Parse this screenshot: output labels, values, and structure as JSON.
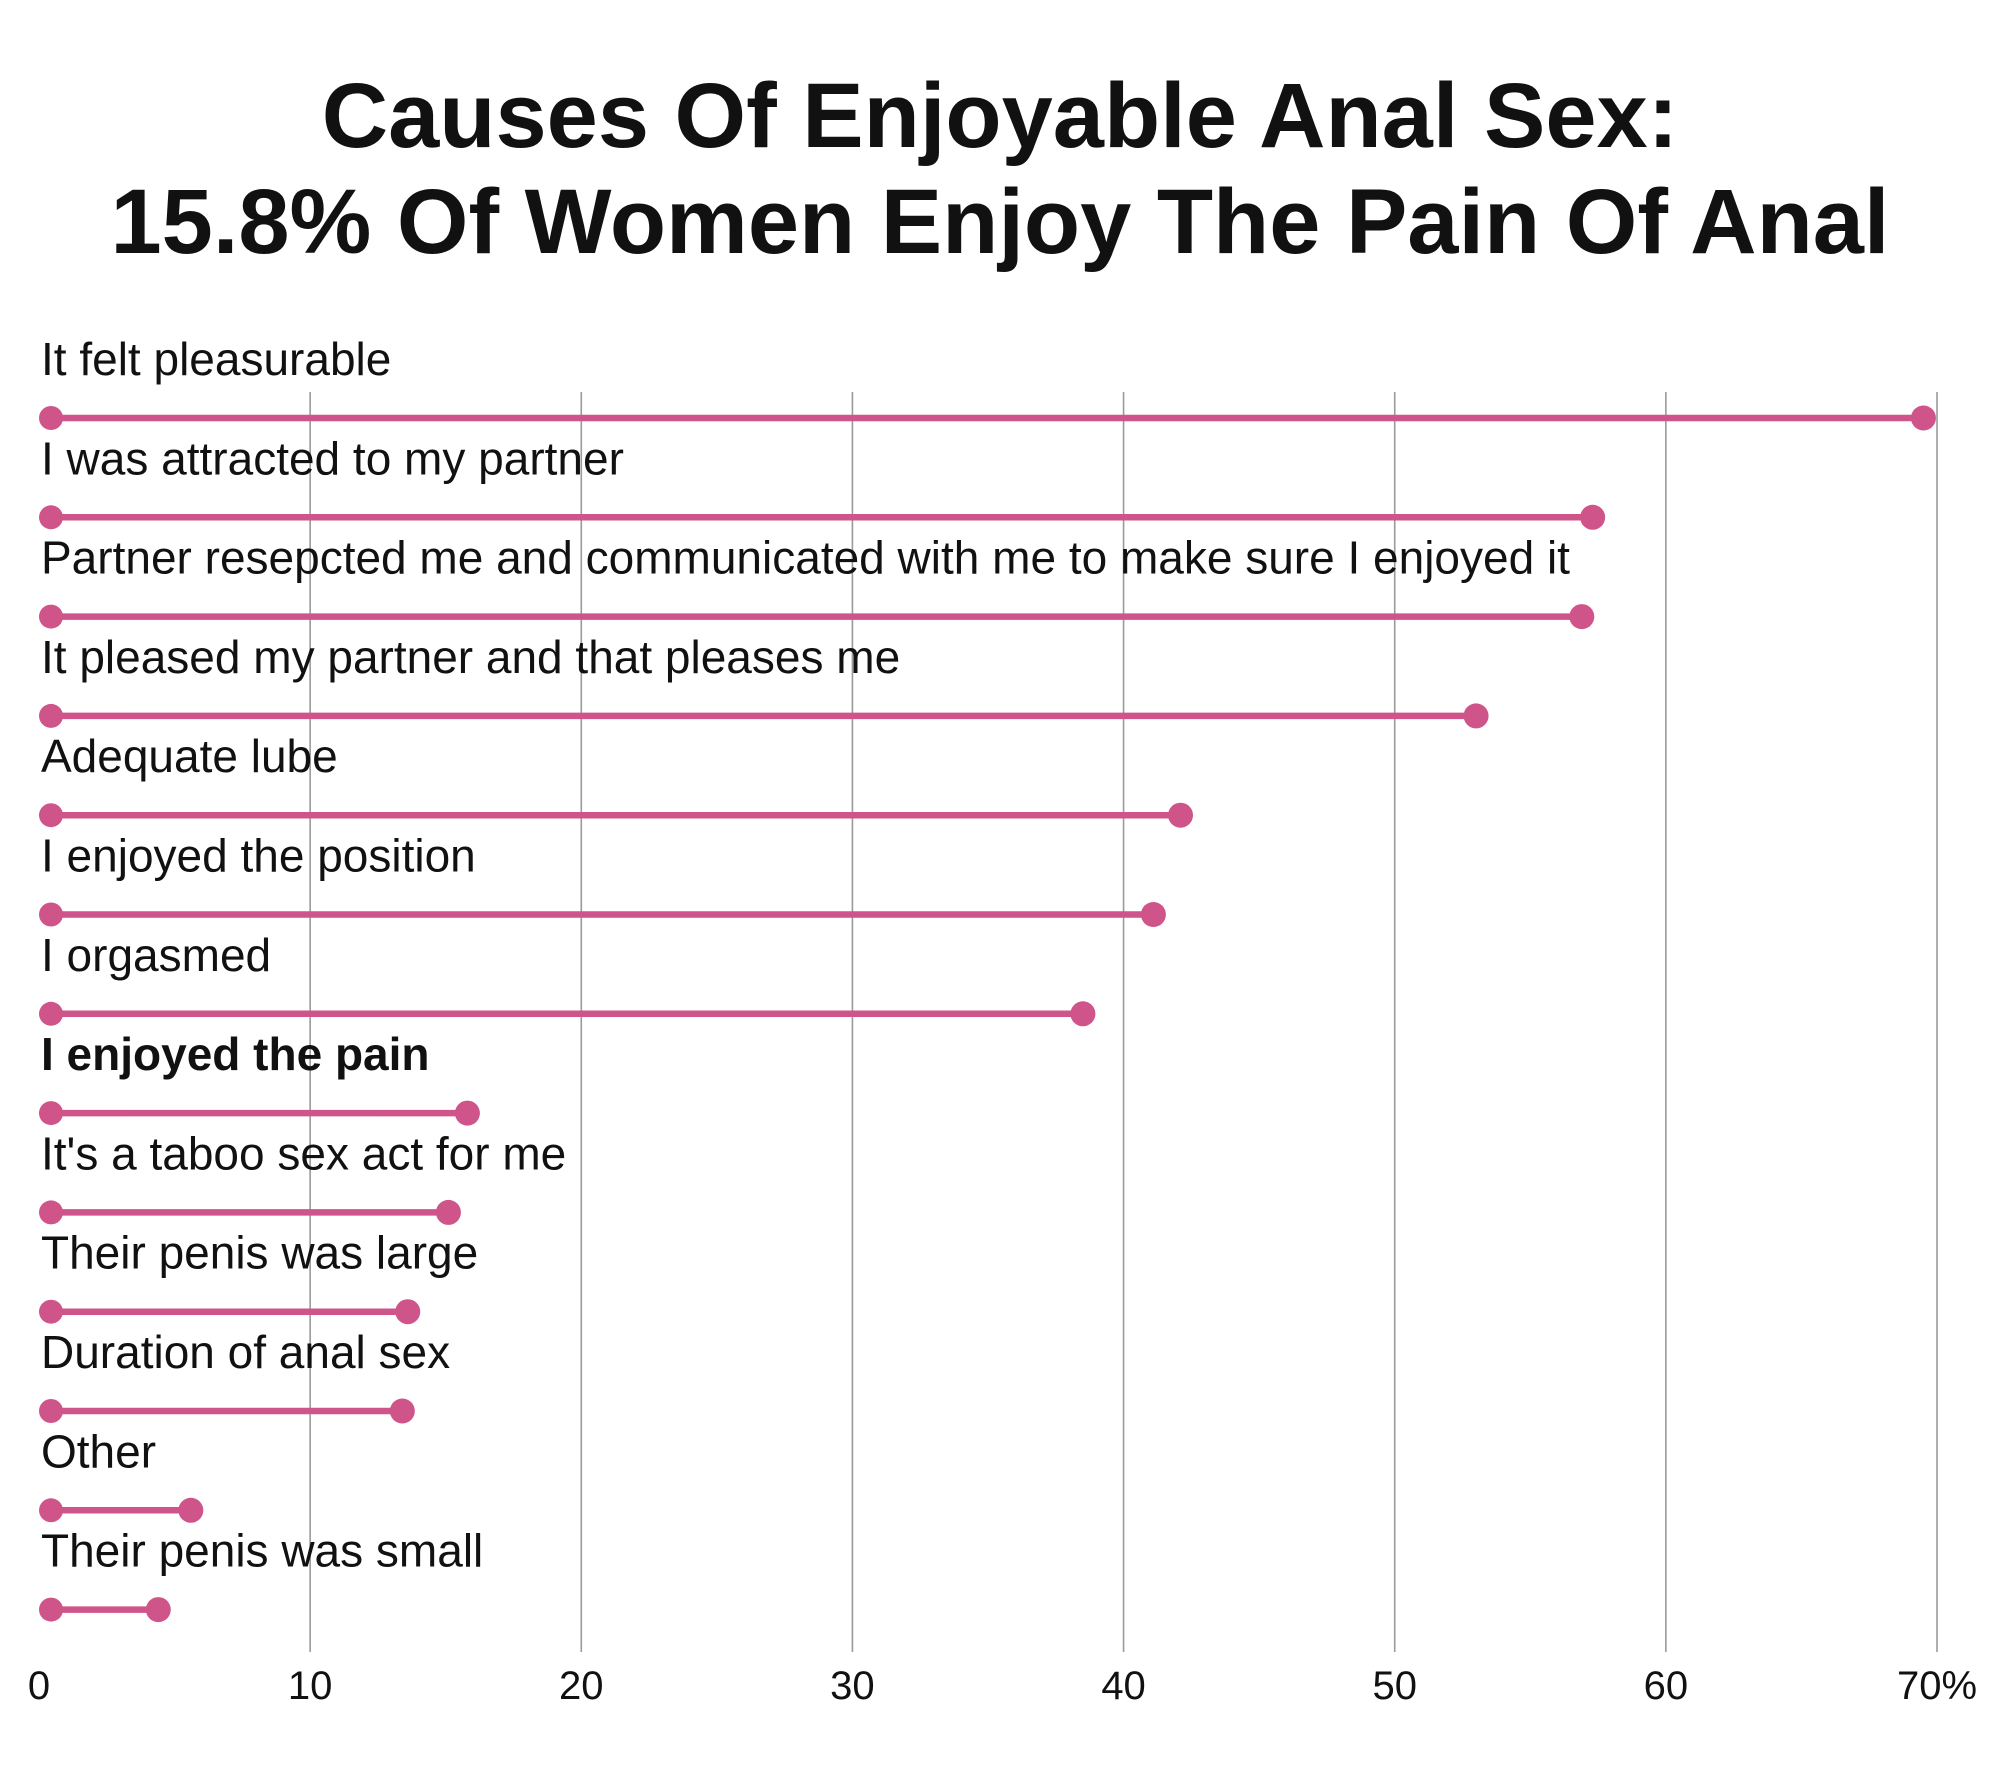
{
  "title_lines": [
    "Causes Of Enjoyable Anal Sex:",
    "15.8% Of Women Enjoy The Pain Of Anal"
  ],
  "chart_data": {
    "type": "bar",
    "style": "lollipop",
    "orientation": "horizontal",
    "title": "Causes Of Enjoyable Anal Sex: 15.8% Of Women Enjoy The Pain Of Anal",
    "categories": [
      "It felt pleasurable",
      "I was attracted to my partner",
      "Partner resepcted me and communicated with me to make sure I enjoyed it",
      "It pleased my partner and that pleases me",
      "Adequate lube",
      "I enjoyed the position",
      "I orgasmed",
      "I enjoyed the pain",
      "It's a taboo sex act for me",
      "Their penis was large",
      "Duration of anal sex",
      "Other",
      "Their penis was small"
    ],
    "values": [
      69.5,
      57.3,
      56.9,
      53.0,
      42.1,
      41.1,
      38.5,
      15.8,
      15.1,
      13.6,
      13.4,
      5.6,
      4.4
    ],
    "highlight_category": "I enjoyed the pain",
    "xlim": [
      0,
      70
    ],
    "x_ticks": [
      0,
      10,
      20,
      30,
      40,
      50,
      60,
      70
    ],
    "x_tick_labels": [
      "0",
      "10",
      "20",
      "30",
      "40",
      "50",
      "60",
      "70%"
    ],
    "xlabel": "",
    "ylabel": "",
    "grid": "vertical",
    "legend": "none",
    "colors": {
      "lollipop": "#cf5489",
      "grid": "#9a9a9a",
      "text": "#111111",
      "background": "#ffffff"
    }
  }
}
